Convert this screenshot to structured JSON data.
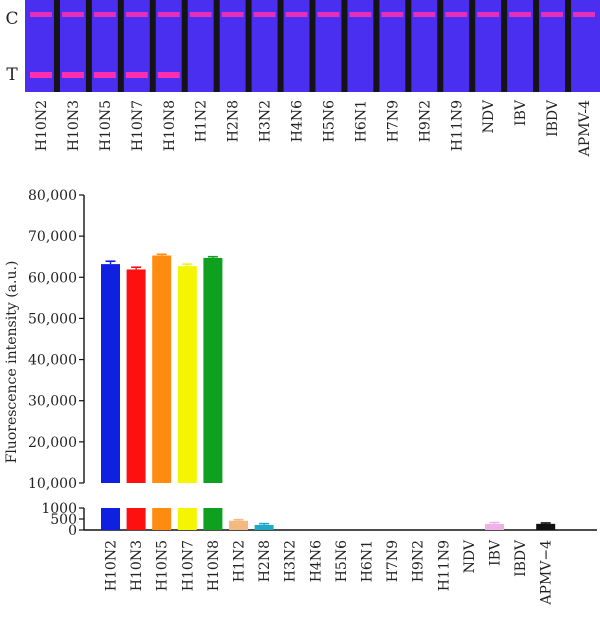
{
  "strip_panel": {
    "line_labels": {
      "control": "C",
      "test": "T"
    },
    "colors": {
      "membrane": "#4a2ff0",
      "divider": "#141414",
      "band": "#ff2fb0"
    },
    "strips": [
      {
        "name": "H10N2",
        "c_band": true,
        "t_band": true
      },
      {
        "name": "H10N3",
        "c_band": true,
        "t_band": true
      },
      {
        "name": "H10N5",
        "c_band": true,
        "t_band": true
      },
      {
        "name": "H10N7",
        "c_band": true,
        "t_band": true
      },
      {
        "name": "H10N8",
        "c_band": true,
        "t_band": true
      },
      {
        "name": "H1N2",
        "c_band": true,
        "t_band": false
      },
      {
        "name": "H2N8",
        "c_band": true,
        "t_band": false
      },
      {
        "name": "H3N2",
        "c_band": true,
        "t_band": false
      },
      {
        "name": "H4N6",
        "c_band": true,
        "t_band": false
      },
      {
        "name": "H5N6",
        "c_band": true,
        "t_band": false
      },
      {
        "name": "H6N1",
        "c_band": true,
        "t_band": false
      },
      {
        "name": "H7N9",
        "c_band": true,
        "t_band": false
      },
      {
        "name": "H9N2",
        "c_band": true,
        "t_band": false
      },
      {
        "name": "H11N9",
        "c_band": true,
        "t_band": false
      },
      {
        "name": "NDV",
        "c_band": true,
        "t_band": false
      },
      {
        "name": "IBV",
        "c_band": true,
        "t_band": false
      },
      {
        "name": "IBDV",
        "c_band": true,
        "t_band": false
      },
      {
        "name": "APMV-4",
        "c_band": true,
        "t_band": false
      }
    ]
  },
  "chart_data": {
    "type": "bar",
    "ylabel": "Fluorescence intensity (a.u.)",
    "xlabel": "",
    "title": "",
    "broken_axis": {
      "lower_range": [
        0,
        1000
      ],
      "lower_ticks": [
        "0",
        "500",
        "1000"
      ],
      "upper_range": [
        10000,
        80000
      ],
      "upper_ticks": [
        "10,000",
        "20,000",
        "30,000",
        "40,000",
        "50,000",
        "60,000",
        "70,000",
        "80,000"
      ]
    },
    "categories": [
      "H10N2",
      "H10N3",
      "H10N5",
      "H10N7",
      "H10N8",
      "H1N2",
      "H2N8",
      "H3N2",
      "H4N6",
      "H5N6",
      "H6N1",
      "H7N9",
      "H9N2",
      "H11N9",
      "NDV",
      "IBV",
      "IBDV",
      "APMV−4"
    ],
    "values": [
      63200,
      61900,
      65300,
      62700,
      64700,
      420,
      230,
      0,
      0,
      0,
      0,
      0,
      0,
      0,
      0,
      270,
      0,
      280
    ],
    "errors": [
      700,
      550,
      300,
      500,
      300,
      50,
      60,
      0,
      0,
      0,
      0,
      0,
      0,
      0,
      0,
      70,
      0,
      40
    ],
    "colors": [
      "#1020e0",
      "#ff1010",
      "#ff8c10",
      "#f5f500",
      "#10a020",
      "#f4b880",
      "#20a8c8",
      "#888888",
      "#888888",
      "#888888",
      "#888888",
      "#888888",
      "#888888",
      "#888888",
      "#888888",
      "#f0b0e8",
      "#888888",
      "#111111"
    ],
    "grid": false
  }
}
